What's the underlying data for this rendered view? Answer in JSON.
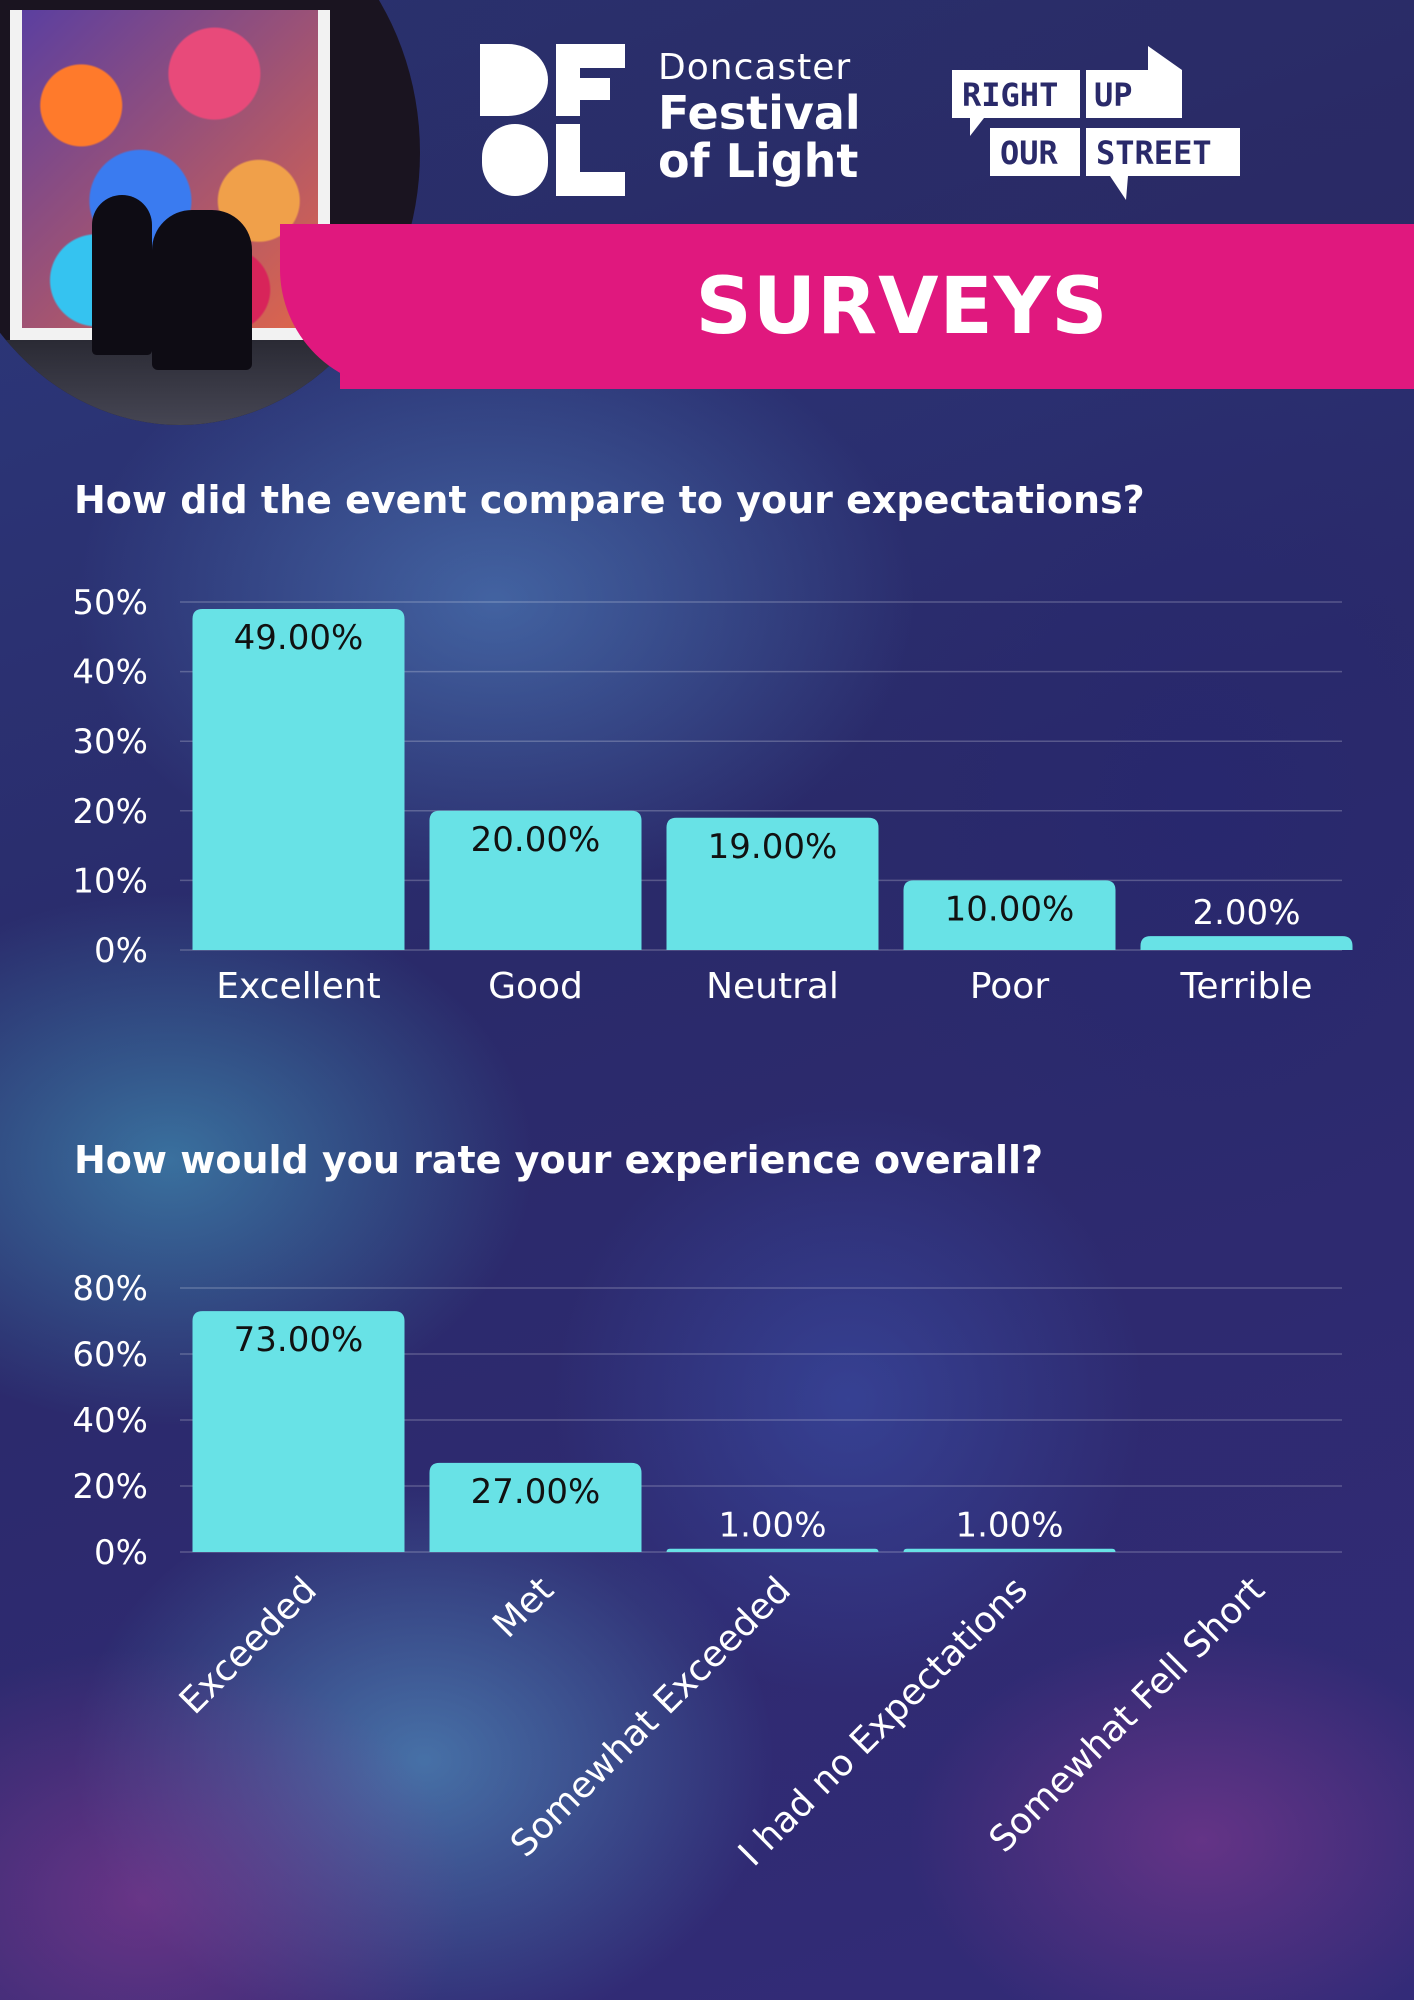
{
  "header": {
    "festival_city": "Doncaster",
    "festival_name_line1": "Festival",
    "festival_name_line2": "of Light",
    "partner_words": [
      "RIGHT",
      "UP",
      "OUR",
      "STREET"
    ],
    "banner_title": "SURVEYS"
  },
  "colors": {
    "banner": "#e0187e",
    "bar": "#68e2e6",
    "background": "#2c2b70"
  },
  "chart_data": [
    {
      "type": "bar",
      "title": "How did the event compare to your expectations?",
      "categories": [
        "Excellent",
        "Good",
        "Neutral",
        "Poor",
        "Terrible"
      ],
      "values": [
        49,
        20,
        19,
        10,
        2
      ],
      "value_labels": [
        "49.00%",
        "20.00%",
        "19.00%",
        "10.00%",
        "2.00%"
      ],
      "yticks": [
        "0%",
        "10%",
        "20%",
        "30%",
        "40%",
        "50%"
      ],
      "ylim": [
        0,
        50
      ],
      "grid": true
    },
    {
      "type": "bar",
      "title": "How would you rate your experience overall?",
      "categories": [
        "Exceeded",
        "Met",
        "Somewhat Exceeded",
        "I had no Expectations",
        "Somewhat Fell Short"
      ],
      "values": [
        73,
        27,
        1,
        1,
        0
      ],
      "value_labels": [
        "73.00%",
        "27.00%",
        "1.00%",
        "1.00%",
        ""
      ],
      "yticks": [
        "0%",
        "20%",
        "40%",
        "60%",
        "80%"
      ],
      "ylim": [
        0,
        80
      ],
      "grid": true
    }
  ]
}
